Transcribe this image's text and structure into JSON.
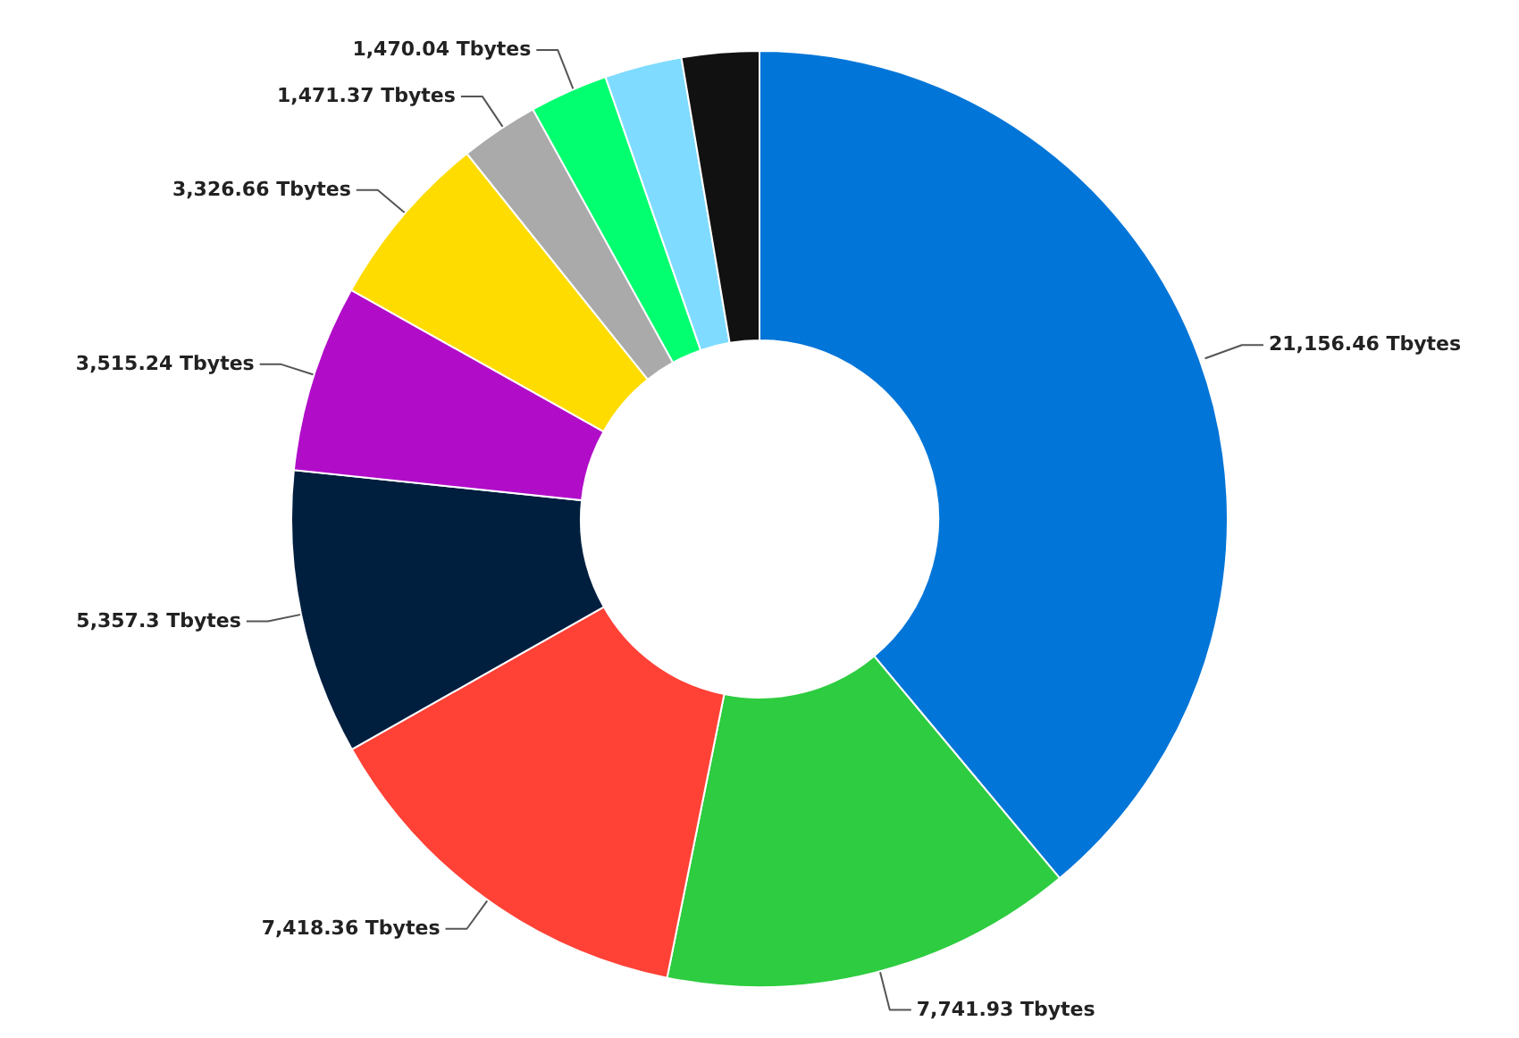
{
  "chart_data": {
    "type": "donut",
    "categories": [
      null,
      null,
      null,
      null,
      null,
      null,
      null,
      null,
      null,
      null
    ],
    "values": [
      21156.46,
      7741.93,
      7418.36,
      5357.3,
      3515.24,
      3326.66,
      1471.37,
      1470.04,
      1450,
      1450
    ],
    "colors": [
      "#0275d8",
      "#2ecc40",
      "#ff4136",
      "#001f3f",
      "#b10dc9",
      "#ffdc00",
      "#aaaaaa",
      "#01ff70",
      "#7fdbff",
      "#111111"
    ],
    "value_labels": [
      "21,156.46 Tbytes",
      "7,741.93 Tbytes",
      "7,418.36 Tbytes",
      "5,357.3 Tbytes",
      "3,515.24 Tbytes",
      "3,326.66 Tbytes",
      "1,471.37 Tbytes",
      "1,470.04 Tbytes",
      null,
      null
    ]
  }
}
